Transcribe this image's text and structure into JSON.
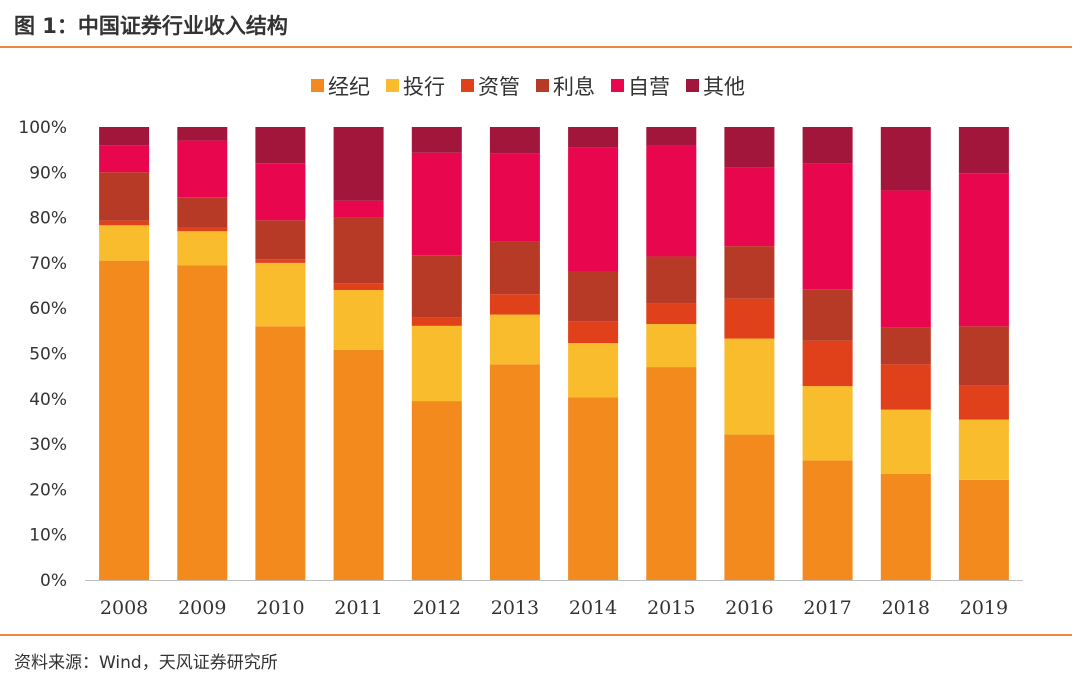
{
  "figure": {
    "title": "图 1：中国证券行业收入结构",
    "source": "资料来源：Wind，天风证券研究所",
    "accent_color": "#F0873A"
  },
  "chart_data": {
    "type": "bar",
    "stacked": true,
    "normalized_percent": true,
    "title": "",
    "xlabel": "",
    "ylabel": "",
    "ylim": [
      0,
      100
    ],
    "yticks": [
      "0%",
      "10%",
      "20%",
      "30%",
      "40%",
      "50%",
      "60%",
      "70%",
      "80%",
      "90%",
      "100%"
    ],
    "grid": false,
    "legend_position": "top",
    "categories": [
      "2008",
      "2009",
      "2010",
      "2011",
      "2012",
      "2013",
      "2014",
      "2015",
      "2016",
      "2017",
      "2018",
      "2019"
    ],
    "series": [
      {
        "name": "经纪",
        "color": "#F28A1E",
        "values": [
          70.5,
          69.5,
          56.0,
          50.8,
          39.5,
          47.6,
          40.3,
          47.0,
          32.1,
          26.4,
          23.4,
          22.1
        ]
      },
      {
        "name": "投行",
        "color": "#F9BC2D",
        "values": [
          7.8,
          7.5,
          14.0,
          13.2,
          16.6,
          11.0,
          12.0,
          9.5,
          21.2,
          16.4,
          14.2,
          13.3
        ]
      },
      {
        "name": "资管",
        "color": "#E0401A",
        "values": [
          1.0,
          0.8,
          0.8,
          1.5,
          1.8,
          4.5,
          4.8,
          4.5,
          8.8,
          10.0,
          10.0,
          7.5
        ]
      },
      {
        "name": "利息",
        "color": "#B63A25",
        "values": [
          10.7,
          6.7,
          8.6,
          14.5,
          13.8,
          11.6,
          10.9,
          10.4,
          11.6,
          11.4,
          8.1,
          13.1
        ]
      },
      {
        "name": "自营",
        "color": "#E8064E",
        "values": [
          6.0,
          12.5,
          12.6,
          3.7,
          22.6,
          19.4,
          27.5,
          24.5,
          17.3,
          27.7,
          30.3,
          33.8
        ]
      },
      {
        "name": "其他",
        "color": "#A3163B",
        "values": [
          4.0,
          3.0,
          8.0,
          16.3,
          5.7,
          5.9,
          4.5,
          4.1,
          9.0,
          8.1,
          14.0,
          10.2
        ]
      }
    ]
  }
}
